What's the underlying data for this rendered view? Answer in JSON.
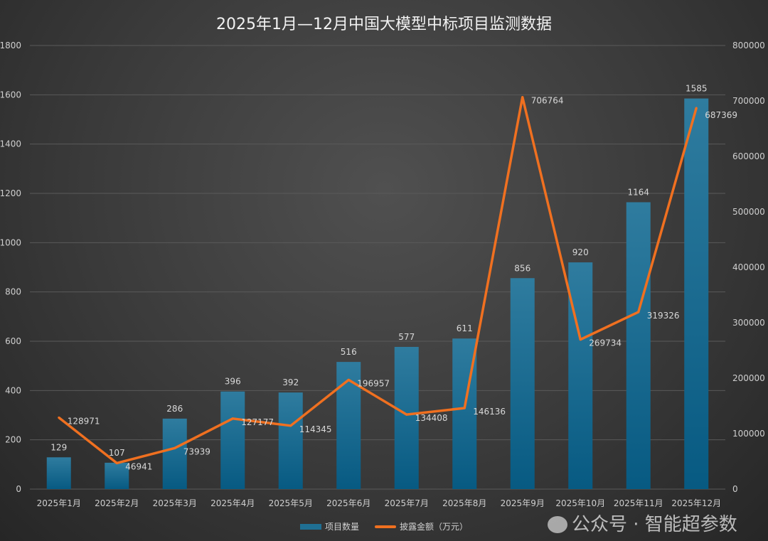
{
  "chart_data": {
    "type": "bar+line",
    "title": "2025年1月—12月中国大模型中标项目监测数据",
    "categories": [
      "2025年1月",
      "2025年2月",
      "2025年3月",
      "2025年4月",
      "2025年5月",
      "2025年6月",
      "2025年7月",
      "2025年8月",
      "2025年9月",
      "2025年10月",
      "2025年11月",
      "2025年12月"
    ],
    "series": [
      {
        "name": "项目数量",
        "type": "bar",
        "axis": "left",
        "color": "#1f6f93",
        "values": [
          129,
          107,
          286,
          396,
          392,
          516,
          577,
          611,
          856,
          920,
          1164,
          1585
        ]
      },
      {
        "name": "披露金额（万元）",
        "type": "line",
        "axis": "right",
        "color": "#f07020",
        "values": [
          128971,
          46941,
          73939,
          127177,
          114345,
          196957,
          134408,
          146136,
          706764,
          269734,
          319326,
          687369
        ]
      }
    ],
    "ylim_left": [
      0,
      1800
    ],
    "yticks_left": [
      "0",
      "200",
      "400",
      "600",
      "800",
      "1000",
      "1200",
      "1400",
      "1600",
      "1800"
    ],
    "ylim_right": [
      0,
      800000
    ],
    "yticks_right": [
      "0",
      "100000",
      "200000",
      "300000",
      "400000",
      "500000",
      "600000",
      "700000",
      "800000"
    ],
    "grid": true,
    "legend": "bottom"
  },
  "watermark": "公众号 · 智能超参数"
}
